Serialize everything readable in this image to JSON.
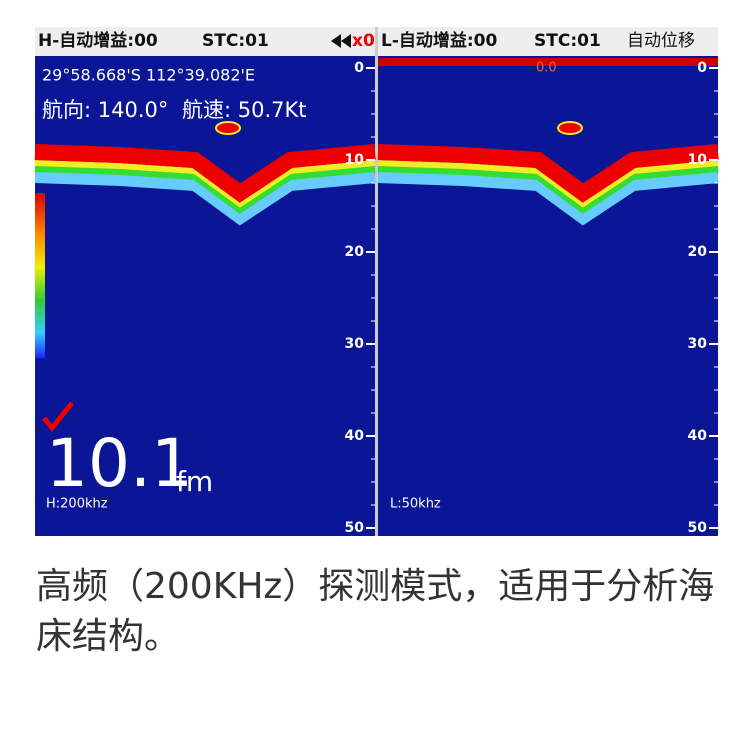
{
  "header": {
    "left_gain": "H-自动增益:00",
    "left_stc": "STC:01",
    "zoom": "x0",
    "right_gain": "L-自动增益:00",
    "right_stc": "STC:01",
    "shift": "自动位移"
  },
  "left_panel": {
    "position": "29°58.668'S 112°39.082'E",
    "heading": "航向: 140.0°",
    "speed": "航速: 50.7Kt",
    "depth": "10.1",
    "depth_unit": "fm",
    "frequency": "H:200khz",
    "depth_scale": [
      0,
      10,
      20,
      30,
      40,
      50
    ]
  },
  "right_panel": {
    "marker": "0.0",
    "frequency": "L:50khz",
    "depth_scale": [
      0,
      10,
      20,
      30,
      40,
      50
    ]
  },
  "caption": "高频（200KHz）探测模式，适用于分析海床结构。"
}
